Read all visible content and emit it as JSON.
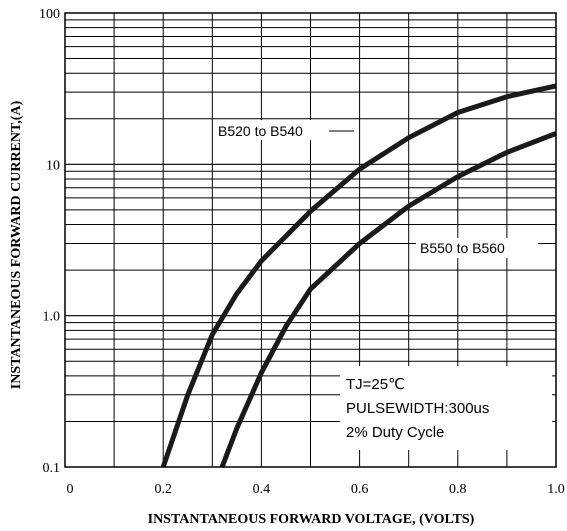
{
  "chart_data": {
    "type": "line",
    "xlabel": "INSTANTANEOUS FORWARD VOLTAGE, (VOLTS)",
    "ylabel": "INSTANTANEOUS FORWARD CURRENT,(A)",
    "xlim": [
      0,
      1.0
    ],
    "ylim": [
      0.1,
      100
    ],
    "yscale": "log",
    "grid": true,
    "x_ticks": [
      "0",
      "0.2",
      "0.4",
      "0.6",
      "0.8",
      "1.0"
    ],
    "y_ticks": [
      "100",
      "10",
      "1.0",
      "0.1"
    ],
    "series": [
      {
        "name": "B520 to B540",
        "x": [
          0.2,
          0.25,
          0.3,
          0.35,
          0.4,
          0.5,
          0.6,
          0.7,
          0.8,
          0.9,
          1.0
        ],
        "y": [
          0.1,
          0.3,
          0.75,
          1.4,
          2.3,
          4.9,
          9.3,
          15,
          22,
          28,
          33
        ]
      },
      {
        "name": "B550 to B560",
        "x": [
          0.32,
          0.35,
          0.4,
          0.45,
          0.5,
          0.6,
          0.7,
          0.8,
          0.9,
          1.0
        ],
        "y": [
          0.1,
          0.18,
          0.42,
          0.85,
          1.5,
          3.0,
          5.3,
          8.3,
          12,
          16
        ]
      }
    ],
    "annotations": [
      "TJ=25℃",
      "PULSEWIDTH:300us",
      "2% Duty Cycle"
    ],
    "colors": {
      "curve": "#1a1a1a",
      "grid": "#000000"
    }
  }
}
